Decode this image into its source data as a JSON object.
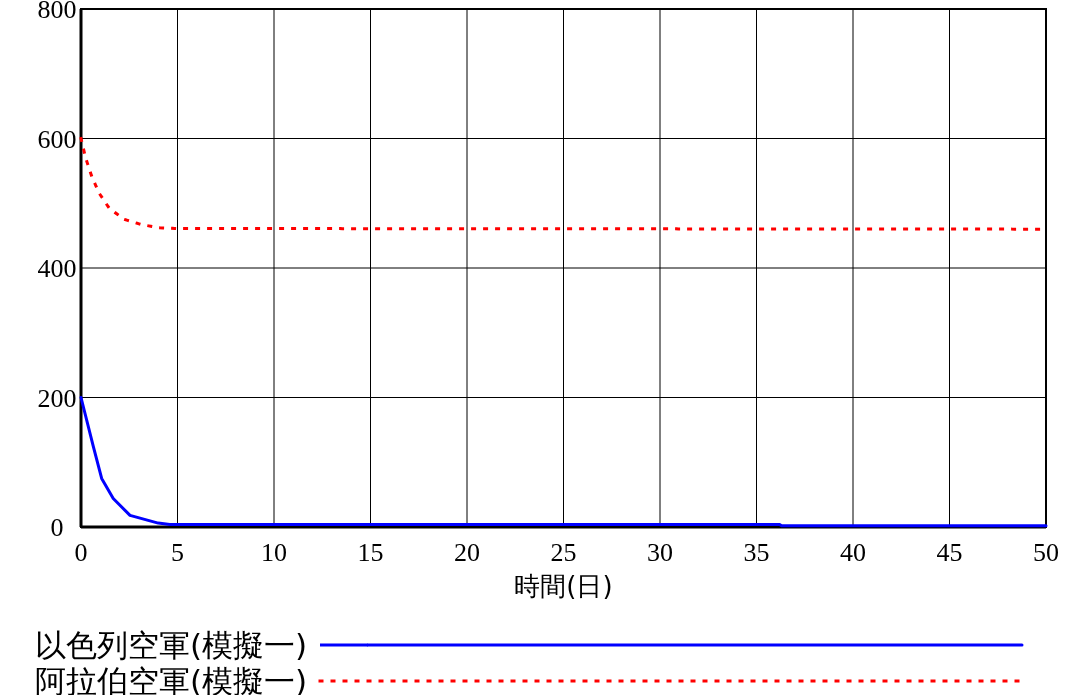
{
  "chart_data": {
    "type": "line",
    "xlabel": "時間(日)",
    "xlim": [
      0,
      50
    ],
    "xticks": [
      0,
      5,
      10,
      15,
      20,
      25,
      30,
      35,
      40,
      45,
      50
    ],
    "ylim": [
      0,
      800
    ],
    "yticks": [
      0,
      200,
      400,
      600,
      800
    ],
    "grid": true,
    "legend": "bottom",
    "series": [
      {
        "name": "以色列空軍(模擬一)",
        "color": "#0000ff",
        "line_style": "solid",
        "x": [
          0,
          0.64,
          1.07,
          1.67,
          2.54,
          4,
          4.6,
          36.2,
          36.3,
          50
        ],
        "values": [
          200,
          124,
          75,
          44,
          18,
          6,
          4,
          4,
          2,
          2
        ]
      },
      {
        "name": "阿拉伯空軍(模擬一)",
        "color": "#ff0000",
        "line_style": "dotted",
        "x": [
          0,
          0.24,
          0.54,
          0.93,
          1.47,
          2.25,
          3.14,
          4.09,
          5,
          50
        ],
        "values": [
          600,
          570,
          543,
          516,
          492,
          475,
          467,
          462,
          461,
          460
        ]
      }
    ]
  }
}
